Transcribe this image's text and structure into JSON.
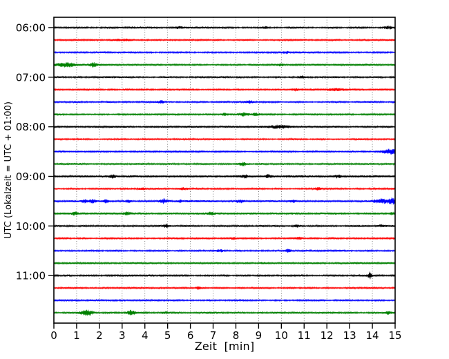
{
  "figure": {
    "background": "#ffffff",
    "axis_color": "#000000",
    "grid_color": "#555555"
  },
  "chart_data": {
    "type": "line",
    "subtype": "seismogram-dayplot",
    "title": "",
    "xlabel": "Zeit  [min]",
    "ylabel": "UTC (Lokalzeit = UTC + 01:00)",
    "xlim": [
      0,
      15
    ],
    "minutes_per_row": 15,
    "grid": "dotted-vertical-per-minute",
    "x_tick_labels": [
      "0",
      "1",
      "2",
      "3",
      "4",
      "5",
      "6",
      "7",
      "8",
      "9",
      "10",
      "11",
      "12",
      "13",
      "14",
      "15"
    ],
    "y_tick_labels": [
      "06:00",
      "07:00",
      "08:00",
      "09:00",
      "10:00",
      "11:00"
    ],
    "y_tick_row_indices": [
      0,
      4,
      8,
      12,
      16,
      20
    ],
    "color_cycle": [
      "#000000",
      "#ff0000",
      "#0000ff",
      "#008000"
    ],
    "rows": [
      {
        "time": "06:00",
        "color": "#000000",
        "base": 1.1,
        "events": [
          [
            5.5,
            1.5,
            0.15
          ],
          [
            9.3,
            1.4,
            0.1
          ],
          [
            14.7,
            1.6,
            0.12
          ]
        ]
      },
      {
        "time": "06:15",
        "color": "#ff0000",
        "base": 1.1,
        "events": [
          [
            3.0,
            1.3,
            0.3
          ]
        ]
      },
      {
        "time": "06:30",
        "color": "#0000ff",
        "base": 1.1,
        "events": [
          [
            10.2,
            1.5,
            0.12
          ]
        ]
      },
      {
        "time": "06:45",
        "color": "#008000",
        "base": 1.2,
        "events": [
          [
            0.55,
            2.6,
            0.3
          ],
          [
            1.75,
            2.8,
            0.12
          ],
          [
            10.0,
            1.4,
            0.1
          ]
        ]
      },
      {
        "time": "07:00",
        "color": "#000000",
        "base": 1.2,
        "events": [
          [
            10.9,
            1.5,
            0.1
          ]
        ]
      },
      {
        "time": "07:15",
        "color": "#ff0000",
        "base": 1.1,
        "events": [
          [
            10.6,
            1.7,
            0.12
          ],
          [
            12.5,
            1.3,
            0.4
          ]
        ]
      },
      {
        "time": "07:30",
        "color": "#0000ff",
        "base": 1.1,
        "events": [
          [
            4.7,
            1.9,
            0.1
          ],
          [
            8.6,
            1.5,
            0.12
          ]
        ]
      },
      {
        "time": "07:45",
        "color": "#008000",
        "base": 1.2,
        "events": [
          [
            7.5,
            1.6,
            0.1
          ],
          [
            8.3,
            2.0,
            0.15
          ],
          [
            8.9,
            1.5,
            0.1
          ]
        ]
      },
      {
        "time": "08:00",
        "color": "#000000",
        "base": 1.2,
        "events": [
          [
            9.9,
            1.9,
            0.35
          ]
        ]
      },
      {
        "time": "08:15",
        "color": "#ff0000",
        "base": 1.1,
        "events": []
      },
      {
        "time": "08:30",
        "color": "#0000ff",
        "base": 1.1,
        "events": [
          [
            14.8,
            3.2,
            0.25
          ]
        ]
      },
      {
        "time": "08:45",
        "color": "#008000",
        "base": 1.2,
        "events": [
          [
            8.3,
            2.2,
            0.1
          ]
        ]
      },
      {
        "time": "09:00",
        "color": "#000000",
        "base": 1.4,
        "events": [
          [
            2.6,
            1.6,
            0.1
          ],
          [
            8.4,
            2.0,
            0.12
          ],
          [
            9.4,
            2.2,
            0.1
          ],
          [
            12.5,
            1.7,
            0.1
          ]
        ]
      },
      {
        "time": "09:15",
        "color": "#ff0000",
        "base": 1.1,
        "events": [
          [
            3.9,
            1.5,
            0.12
          ],
          [
            5.7,
            1.7,
            0.15
          ],
          [
            11.6,
            1.5,
            0.1
          ]
        ]
      },
      {
        "time": "09:30",
        "color": "#0000ff",
        "base": 1.3,
        "events": [
          [
            1.35,
            2.2,
            0.1
          ],
          [
            1.7,
            2.4,
            0.1
          ],
          [
            2.3,
            1.9,
            0.08
          ],
          [
            3.3,
            1.7,
            0.08
          ],
          [
            4.85,
            2.7,
            0.12
          ],
          [
            5.55,
            1.9,
            0.08
          ],
          [
            8.2,
            2.1,
            0.12
          ],
          [
            10.5,
            1.7,
            0.1
          ],
          [
            14.4,
            2.4,
            0.3
          ],
          [
            14.9,
            3.2,
            0.15
          ]
        ]
      },
      {
        "time": "09:45",
        "color": "#008000",
        "base": 1.3,
        "events": [
          [
            0.9,
            1.7,
            0.1
          ],
          [
            3.25,
            2.2,
            0.12
          ],
          [
            6.9,
            1.7,
            0.1
          ],
          [
            14.9,
            1.8,
            0.08
          ]
        ]
      },
      {
        "time": "10:00",
        "color": "#000000",
        "base": 1.2,
        "events": [
          [
            4.95,
            2.1,
            0.08
          ],
          [
            10.7,
            1.5,
            0.1
          ],
          [
            14.4,
            1.6,
            0.1
          ]
        ]
      },
      {
        "time": "10:15",
        "color": "#ff0000",
        "base": 1.1,
        "events": [
          [
            7.9,
            1.4,
            0.1
          ],
          [
            10.8,
            1.5,
            0.1
          ]
        ]
      },
      {
        "time": "10:30",
        "color": "#0000ff",
        "base": 1.1,
        "events": [
          [
            7.3,
            1.4,
            0.1
          ],
          [
            10.3,
            1.7,
            0.08
          ]
        ]
      },
      {
        "time": "10:45",
        "color": "#008000",
        "base": 1.3,
        "events": []
      },
      {
        "time": "11:00",
        "color": "#000000",
        "base": 1.1,
        "events": [
          [
            13.9,
            4.8,
            0.06
          ]
        ]
      },
      {
        "time": "11:15",
        "color": "#ff0000",
        "base": 1.1,
        "events": [
          [
            6.35,
            1.9,
            0.08
          ]
        ]
      },
      {
        "time": "11:30",
        "color": "#0000ff",
        "base": 1.1,
        "events": []
      },
      {
        "time": "11:45",
        "color": "#008000",
        "base": 1.2,
        "events": [
          [
            1.45,
            4.2,
            0.18
          ],
          [
            3.4,
            3.6,
            0.12
          ],
          [
            4.9,
            1.6,
            0.1
          ],
          [
            14.7,
            1.8,
            0.08
          ]
        ]
      }
    ]
  }
}
